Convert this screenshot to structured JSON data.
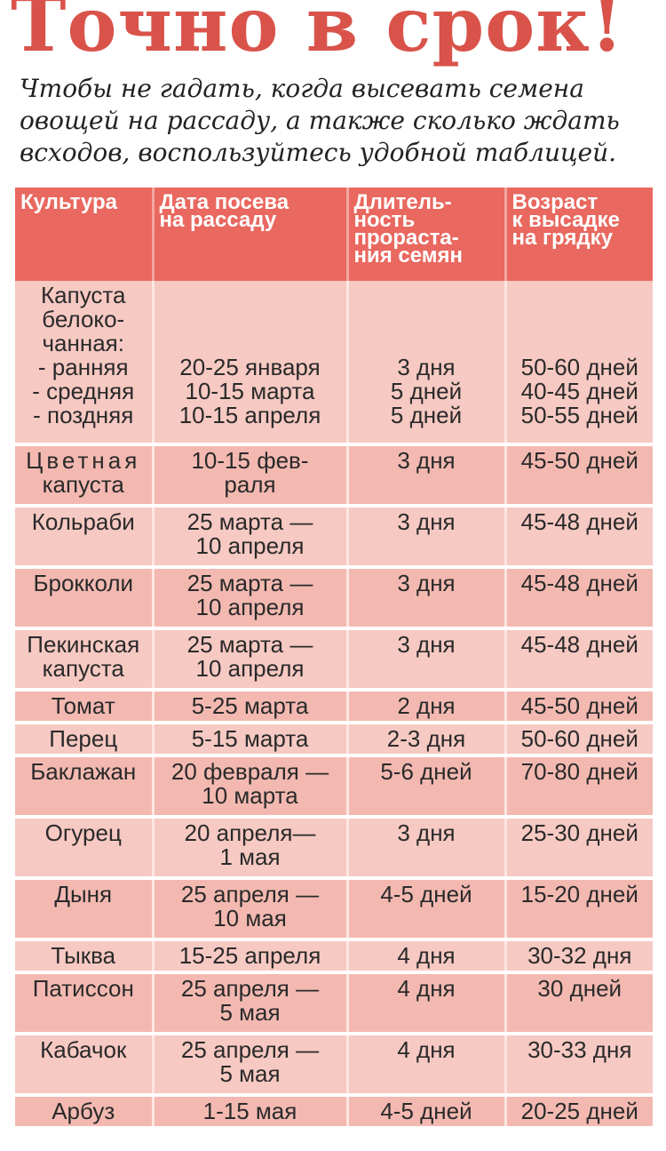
{
  "title": "Точно в срок!",
  "intro_lines": [
    "Чтобы не гадать, когда высевать семена",
    "овощей на рассаду, а также сколько ждать",
    "всходов, воспользуйтесь удобной таблицей."
  ],
  "table": {
    "headers": [
      [
        "Культура"
      ],
      [
        "Дата посева",
        "на рассаду"
      ],
      [
        "Длитель-",
        "ность",
        "прораста-",
        "ния семян"
      ],
      [
        "Возраст",
        "к высадке",
        "на грядку"
      ]
    ],
    "rows": [
      {
        "crop": [
          "Капуста",
          "белоко-",
          "чанная:",
          "- ранняя",
          "- средняя",
          "- поздняя"
        ],
        "sowing": [
          "",
          "",
          "",
          "20-25 января",
          "10-15 марта",
          "10-15 апреля"
        ],
        "germination": [
          "",
          "",
          "",
          "3 дня",
          "5 дней",
          "5 дней"
        ],
        "age": [
          "",
          "",
          "",
          "50-60 дней",
          "40-45 дней",
          "50-55 дней"
        ]
      },
      {
        "crop": [
          "Цветная",
          "капуста"
        ],
        "sowing": [
          "10-15 фев-",
          "раля"
        ],
        "germination": [
          "3 дня"
        ],
        "age": [
          "45-50 дней"
        ]
      },
      {
        "crop": [
          "Кольраби"
        ],
        "sowing": [
          "25 марта —",
          "10 апреля"
        ],
        "germination": [
          "3 дня"
        ],
        "age": [
          "45-48 дней"
        ]
      },
      {
        "crop": [
          "Брокколи"
        ],
        "sowing": [
          "25 марта —",
          "10 апреля"
        ],
        "germination": [
          "3 дня"
        ],
        "age": [
          "45-48 дней"
        ]
      },
      {
        "crop": [
          "Пекинская",
          "капуста"
        ],
        "sowing": [
          "25 марта —",
          "10 апреля"
        ],
        "germination": [
          "3 дня"
        ],
        "age": [
          "45-48 дней"
        ]
      },
      {
        "crop": [
          "Томат"
        ],
        "sowing": [
          "5-25 марта"
        ],
        "germination": [
          "2 дня"
        ],
        "age": [
          "45-50 дней"
        ]
      },
      {
        "crop": [
          "Перец"
        ],
        "sowing": [
          "5-15 марта"
        ],
        "germination": [
          "2-3 дня"
        ],
        "age": [
          "50-60 дней"
        ]
      },
      {
        "crop": [
          "Баклажан"
        ],
        "sowing": [
          "20 февраля —",
          "10 марта"
        ],
        "germination": [
          "5-6 дней"
        ],
        "age": [
          "70-80 дней"
        ]
      },
      {
        "crop": [
          "Огурец"
        ],
        "sowing": [
          "20 апреля—",
          "1 мая"
        ],
        "germination": [
          "3 дня"
        ],
        "age": [
          "25-30 дней"
        ]
      },
      {
        "crop": [
          "Дыня"
        ],
        "sowing": [
          "25 апреля —",
          "10 мая"
        ],
        "germination": [
          "4-5 дней"
        ],
        "age": [
          "15-20 дней"
        ]
      },
      {
        "crop": [
          "Тыква"
        ],
        "sowing": [
          "15-25 апреля"
        ],
        "germination": [
          "4 дня"
        ],
        "age": [
          "30-32 дня"
        ]
      },
      {
        "crop": [
          "Патиссон"
        ],
        "sowing": [
          "25 апреля —",
          "5 мая"
        ],
        "germination": [
          "4 дня"
        ],
        "age": [
          "30 дней"
        ]
      },
      {
        "crop": [
          "Кабачок"
        ],
        "sowing": [
          "25 апреля —",
          "5 мая"
        ],
        "germination": [
          "4 дня"
        ],
        "age": [
          "30-33 дня"
        ]
      },
      {
        "crop": [
          "Арбуз"
        ],
        "sowing": [
          "1-15 мая"
        ],
        "germination": [
          "4-5 дней"
        ],
        "age": [
          "20-25 дней"
        ]
      }
    ]
  }
}
